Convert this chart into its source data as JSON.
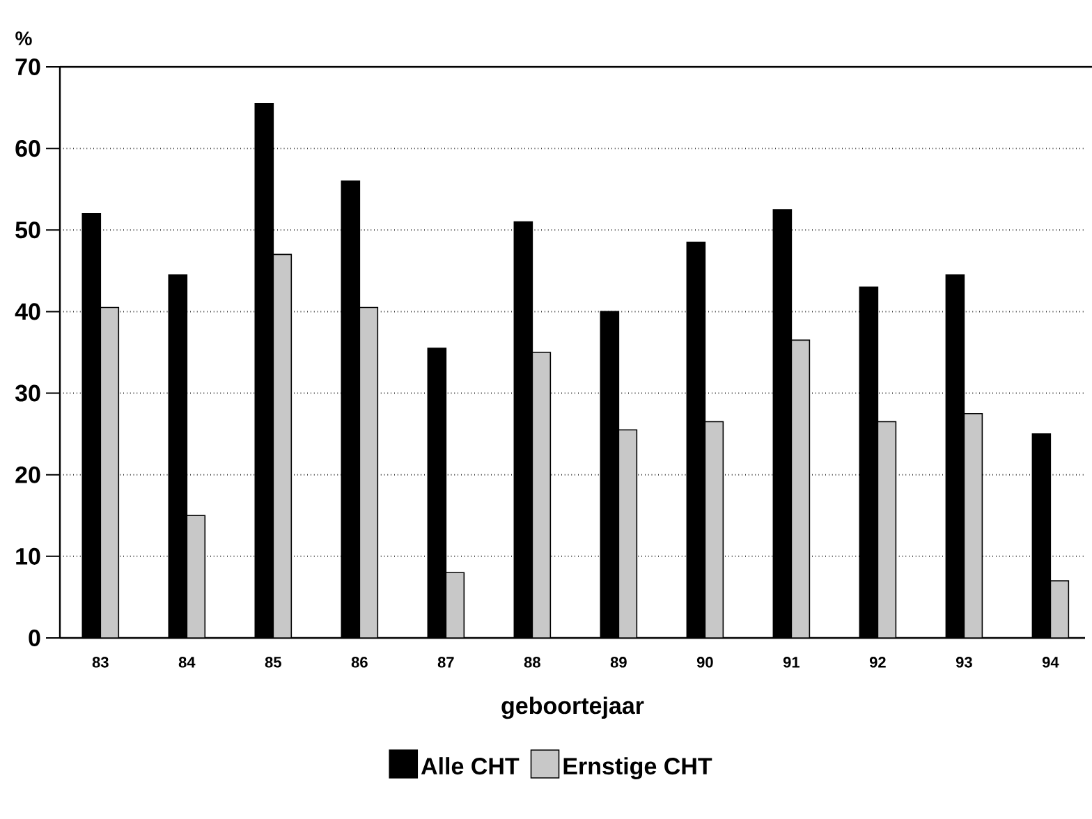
{
  "chart_data": {
    "type": "bar",
    "xlabel": "geboortejaar",
    "ylabel": "%",
    "categories": [
      "83",
      "84",
      "85",
      "86",
      "87",
      "88",
      "89",
      "90",
      "91",
      "92",
      "93",
      "94"
    ],
    "series": [
      {
        "name": "Alle CHT",
        "color": "#000000",
        "values": [
          52,
          44.5,
          65.5,
          56,
          35.5,
          51,
          40,
          48.5,
          52.5,
          43,
          44.5,
          25
        ]
      },
      {
        "name": "Ernstige CHT",
        "color": "#c8c8c8",
        "values": [
          40.5,
          15,
          47,
          40.5,
          8,
          35,
          25.5,
          26.5,
          36.5,
          26.5,
          27.5,
          7
        ]
      }
    ],
    "ylim": [
      0,
      70
    ],
    "yticks": [
      0,
      10,
      20,
      30,
      40,
      50,
      60,
      70
    ],
    "grid": "y",
    "legend": "bottom"
  }
}
